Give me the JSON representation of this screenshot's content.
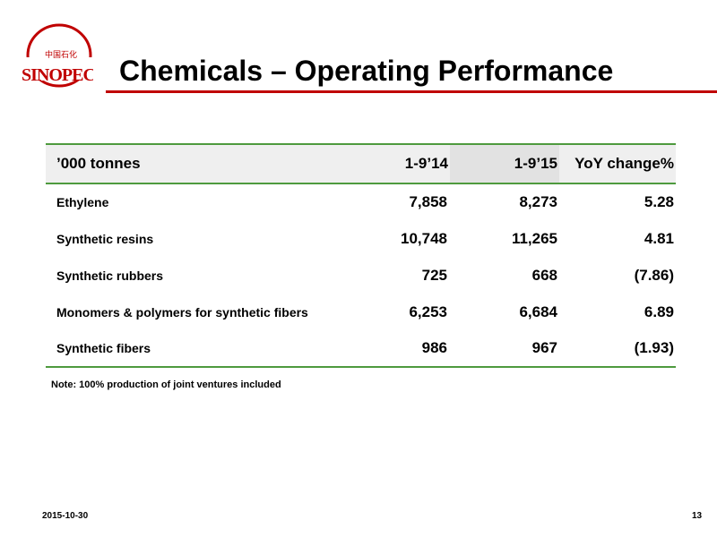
{
  "logo": {
    "chinese_text": "中国石化",
    "wordmark": "SINOPEC",
    "color": "#c00000"
  },
  "slide": {
    "title": "Chemicals – Operating Performance"
  },
  "table": {
    "headers": [
      "’000 tonnes",
      "1-9’14",
      "1-9’15",
      "YoY change%"
    ],
    "rows": [
      {
        "label": "Ethylene",
        "y2014": "7,858",
        "y2015": "8,273",
        "change": "5.28"
      },
      {
        "label": "Synthetic resins",
        "y2014": "10,748",
        "y2015": "11,265",
        "change": "4.81"
      },
      {
        "label": "Synthetic rubbers",
        "y2014": "725",
        "y2015": "668",
        "change": "(7.86)"
      },
      {
        "label": "Monomers & polymers for synthetic fibers",
        "y2014": "6,253",
        "y2015": "6,684",
        "change": "6.89"
      },
      {
        "label": "Synthetic fibers",
        "y2014": "986",
        "y2015": "967",
        "change": "(1.93)"
      }
    ]
  },
  "note": "Note: 100% production of joint ventures included",
  "footer": {
    "date": "2015-10-30",
    "page": "13"
  },
  "colors": {
    "accent_red": "#c00000",
    "table_rule_green": "#4e9a3e",
    "header_fill": "#efefef"
  }
}
